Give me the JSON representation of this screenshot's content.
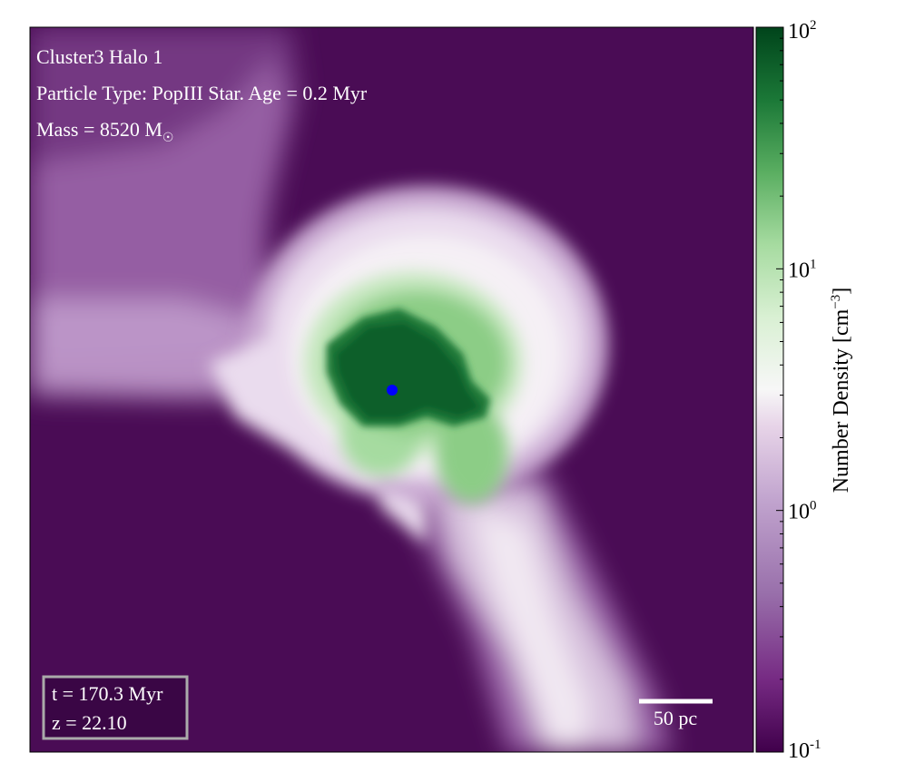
{
  "colors": {
    "background": "#4a0c55",
    "low": "#4a0c55",
    "mid_purple": "#9b5fa8",
    "white": "#f7f7f7",
    "light_green": "#a6dba0",
    "dark_green": "#0f5f2a",
    "star_marker": "#0000ff",
    "timebox_border": "#aaaaaa",
    "timebox_fill": "#3a0645"
  },
  "annotations": {
    "title": "Cluster3 Halo 1",
    "particle_line": "Particle Type: PopIII Star. Age = 0.2 Myr",
    "mass_prefix": "Mass = 8520 M",
    "mass_symbol": "☉",
    "time": "t = 170.3 Myr",
    "redshift": "z = 22.10",
    "scale_bar": "50 pc"
  },
  "chart_data": {
    "type": "heatmap",
    "colormap": "PRGn",
    "colorbar": {
      "label": "Number Density [cm",
      "label_exponent": "−3",
      "label_suffix": "]",
      "scale": "log",
      "range": [
        0.1,
        100
      ],
      "ticks": [
        {
          "base": "10",
          "exp": "2",
          "value": 100
        },
        {
          "base": "10",
          "exp": "1",
          "value": 10
        },
        {
          "base": "10",
          "exp": "0",
          "value": 1
        },
        {
          "base": "10",
          "exp": "-1",
          "value": 0.1
        }
      ]
    },
    "structures": [
      {
        "name": "diffuse filament (upper left)",
        "density": 0.4
      },
      {
        "name": "filament tail (lower right)",
        "density": 1.0
      },
      {
        "name": "outer halo envelope",
        "density": 2.0
      },
      {
        "name": "inner halo",
        "density": 8.0
      },
      {
        "name": "dense core",
        "density": 60.0
      }
    ],
    "star_particle": {
      "type": "PopIII Star",
      "age_myr": 0.2,
      "mass_msun": 8520
    }
  }
}
